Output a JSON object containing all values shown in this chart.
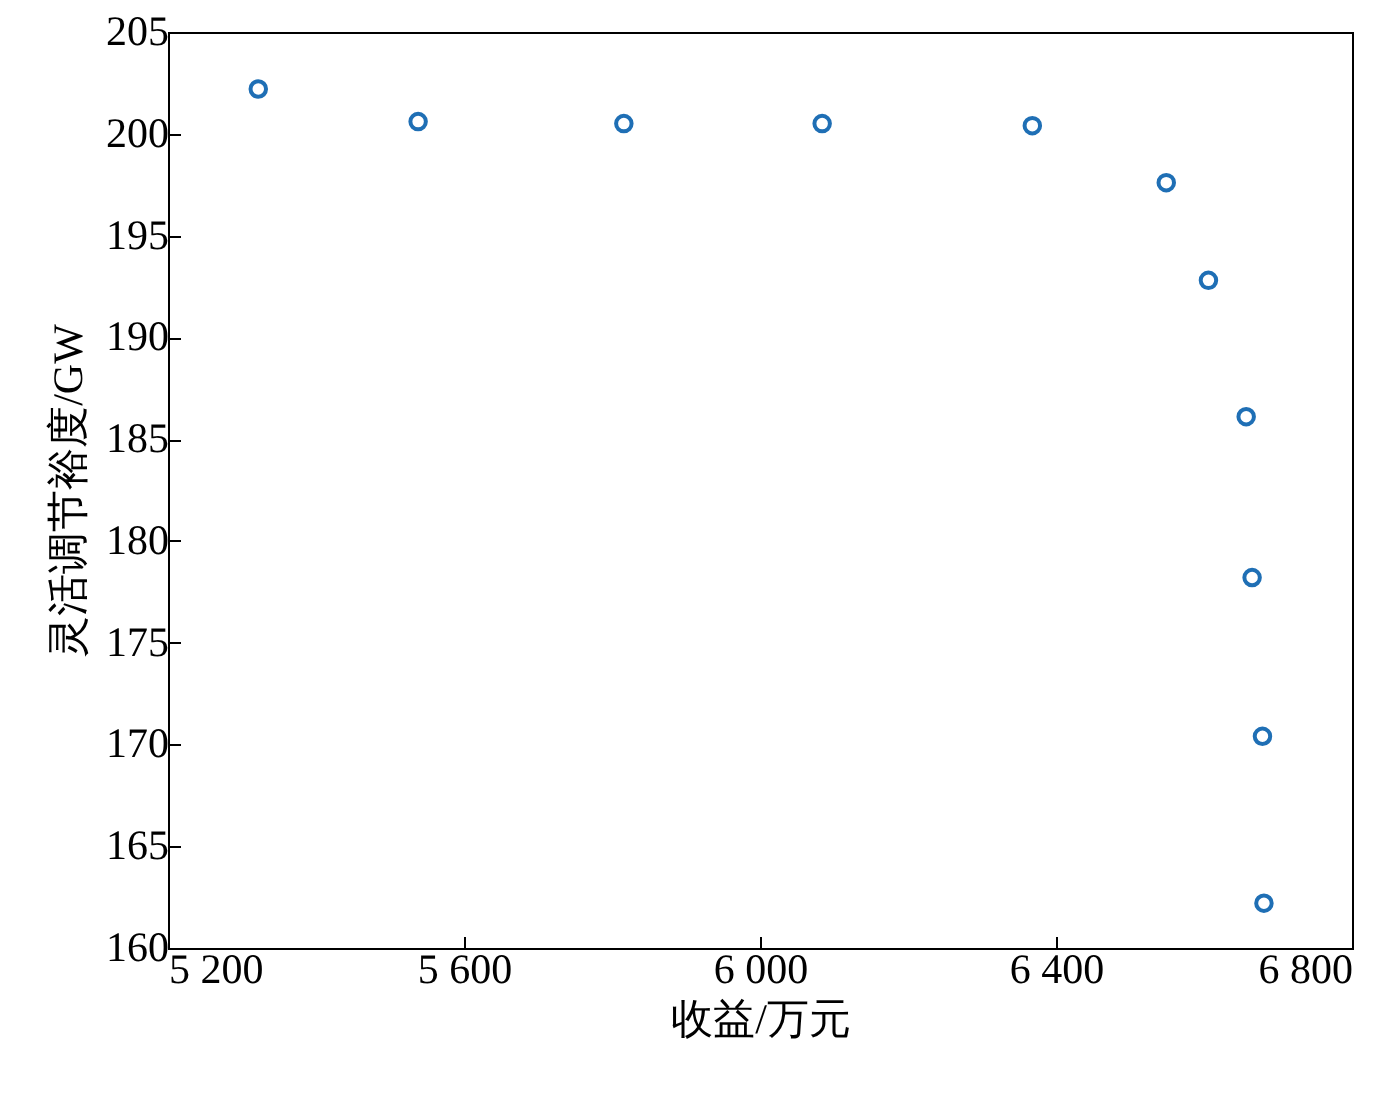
{
  "chart_data": {
    "type": "scatter",
    "xlabel": "收益/万元",
    "ylabel": "灵活调节裕度/GW",
    "x": [
      5322,
      5538,
      5816,
      6084,
      6368,
      6549,
      6606,
      6657,
      6665,
      6679,
      6681
    ],
    "series": [
      {
        "color": "#1f6fb5",
        "values": [
          202.2,
          200.6,
          200.5,
          200.5,
          200.4,
          197.6,
          192.8,
          186.1,
          178.2,
          170.4,
          162.2
        ]
      }
    ],
    "xlim": [
      5200,
      6800
    ],
    "xticks": [
      {
        "value": 5200,
        "label": "5 200"
      },
      {
        "value": 5600,
        "label": "5 600"
      },
      {
        "value": 6000,
        "label": "6 000"
      },
      {
        "value": 6400,
        "label": "6 400"
      },
      {
        "value": 6800,
        "label": "6 800"
      }
    ],
    "ylim": [
      160,
      205
    ],
    "yticks": [
      160,
      165,
      170,
      175,
      180,
      185,
      190,
      195,
      200,
      205
    ],
    "grid": false,
    "marker": "circle"
  }
}
